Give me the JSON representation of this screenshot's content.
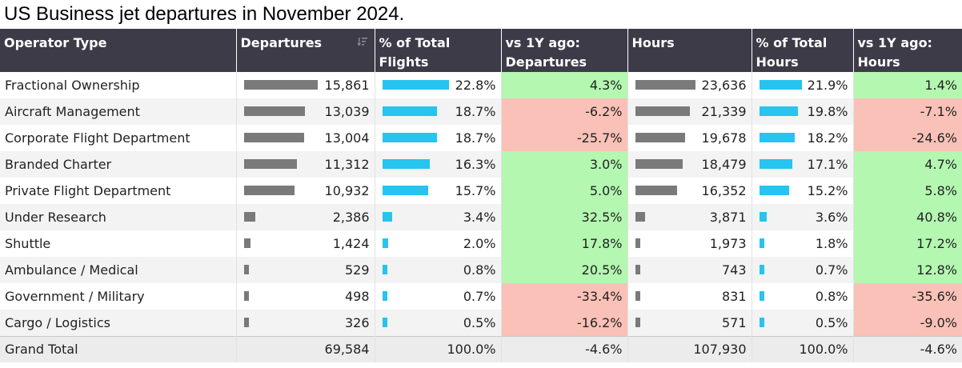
{
  "title": "US Business jet departures in November 2024.",
  "colors": {
    "header_bg": "#3d3b48",
    "bar_gray": "#7a7a7a",
    "bar_blue": "#26c4ef",
    "positive": "#b3f7b0",
    "negative": "#f9c1b7"
  },
  "headers": {
    "operator": "Operator Type",
    "departures": "Departures",
    "pct_flights_1": "% of Total",
    "pct_flights_2": "Flights",
    "vs_dep_1": "vs 1Y ago:",
    "vs_dep_2": "Departures",
    "hours": "Hours",
    "pct_hours_1": "% of Total",
    "pct_hours_2": "Hours",
    "vs_hours_1": "vs 1Y ago:",
    "vs_hours_2": "Hours"
  },
  "sort_icon": "sort-descending-icon",
  "chart_data": {
    "type": "table",
    "columns": [
      "Operator Type",
      "Departures",
      "% of Total Flights",
      "vs 1Y ago: Departures",
      "Hours",
      "% of Total Hours",
      "vs 1Y ago: Hours"
    ],
    "rows": [
      {
        "operator": "Fractional Ownership",
        "departures": 15861,
        "departures_text": "15,861",
        "pct_flights": 22.8,
        "pct_flights_text": "22.8%",
        "vs_dep": 4.3,
        "vs_dep_text": "4.3%",
        "hours": 23636,
        "hours_text": "23,636",
        "pct_hours": 21.9,
        "pct_hours_text": "21.9%",
        "vs_hours": 1.4,
        "vs_hours_text": "1.4%"
      },
      {
        "operator": "Aircraft Management",
        "departures": 13039,
        "departures_text": "13,039",
        "pct_flights": 18.7,
        "pct_flights_text": "18.7%",
        "vs_dep": -6.2,
        "vs_dep_text": "-6.2%",
        "hours": 21339,
        "hours_text": "21,339",
        "pct_hours": 19.8,
        "pct_hours_text": "19.8%",
        "vs_hours": -7.1,
        "vs_hours_text": "-7.1%"
      },
      {
        "operator": "Corporate Flight Department",
        "departures": 13004,
        "departures_text": "13,004",
        "pct_flights": 18.7,
        "pct_flights_text": "18.7%",
        "vs_dep": -25.7,
        "vs_dep_text": "-25.7%",
        "hours": 19678,
        "hours_text": "19,678",
        "pct_hours": 18.2,
        "pct_hours_text": "18.2%",
        "vs_hours": -24.6,
        "vs_hours_text": "-24.6%"
      },
      {
        "operator": "Branded Charter",
        "departures": 11312,
        "departures_text": "11,312",
        "pct_flights": 16.3,
        "pct_flights_text": "16.3%",
        "vs_dep": 3.0,
        "vs_dep_text": "3.0%",
        "hours": 18479,
        "hours_text": "18,479",
        "pct_hours": 17.1,
        "pct_hours_text": "17.1%",
        "vs_hours": 4.7,
        "vs_hours_text": "4.7%"
      },
      {
        "operator": "Private Flight Department",
        "departures": 10932,
        "departures_text": "10,932",
        "pct_flights": 15.7,
        "pct_flights_text": "15.7%",
        "vs_dep": 5.0,
        "vs_dep_text": "5.0%",
        "hours": 16352,
        "hours_text": "16,352",
        "pct_hours": 15.2,
        "pct_hours_text": "15.2%",
        "vs_hours": 5.8,
        "vs_hours_text": "5.8%"
      },
      {
        "operator": "Under Research",
        "departures": 2386,
        "departures_text": "2,386",
        "pct_flights": 3.4,
        "pct_flights_text": "3.4%",
        "vs_dep": 32.5,
        "vs_dep_text": "32.5%",
        "hours": 3871,
        "hours_text": "3,871",
        "pct_hours": 3.6,
        "pct_hours_text": "3.6%",
        "vs_hours": 40.8,
        "vs_hours_text": "40.8%"
      },
      {
        "operator": "Shuttle",
        "departures": 1424,
        "departures_text": "1,424",
        "pct_flights": 2.0,
        "pct_flights_text": "2.0%",
        "vs_dep": 17.8,
        "vs_dep_text": "17.8%",
        "hours": 1973,
        "hours_text": "1,973",
        "pct_hours": 1.8,
        "pct_hours_text": "1.8%",
        "vs_hours": 17.2,
        "vs_hours_text": "17.2%"
      },
      {
        "operator": "Ambulance / Medical",
        "departures": 529,
        "departures_text": "529",
        "pct_flights": 0.8,
        "pct_flights_text": "0.8%",
        "vs_dep": 20.5,
        "vs_dep_text": "20.5%",
        "hours": 743,
        "hours_text": "743",
        "pct_hours": 0.7,
        "pct_hours_text": "0.7%",
        "vs_hours": 12.8,
        "vs_hours_text": "12.8%"
      },
      {
        "operator": "Government / Military",
        "departures": 498,
        "departures_text": "498",
        "pct_flights": 0.7,
        "pct_flights_text": "0.7%",
        "vs_dep": -33.4,
        "vs_dep_text": "-33.4%",
        "hours": 831,
        "hours_text": "831",
        "pct_hours": 0.8,
        "pct_hours_text": "0.8%",
        "vs_hours": -35.6,
        "vs_hours_text": "-35.6%"
      },
      {
        "operator": "Cargo / Logistics",
        "departures": 326,
        "departures_text": "326",
        "pct_flights": 0.5,
        "pct_flights_text": "0.5%",
        "vs_dep": -16.2,
        "vs_dep_text": "-16.2%",
        "hours": 571,
        "hours_text": "571",
        "pct_hours": 0.5,
        "pct_hours_text": "0.5%",
        "vs_hours": -9.0,
        "vs_hours_text": "-9.0%"
      }
    ],
    "total": {
      "operator": "Grand Total",
      "departures_text": "69,584",
      "pct_flights_text": "100.0%",
      "vs_dep_text": "-4.6%",
      "hours_text": "107,930",
      "pct_hours_text": "100.0%",
      "vs_hours_text": "-4.6%"
    }
  }
}
